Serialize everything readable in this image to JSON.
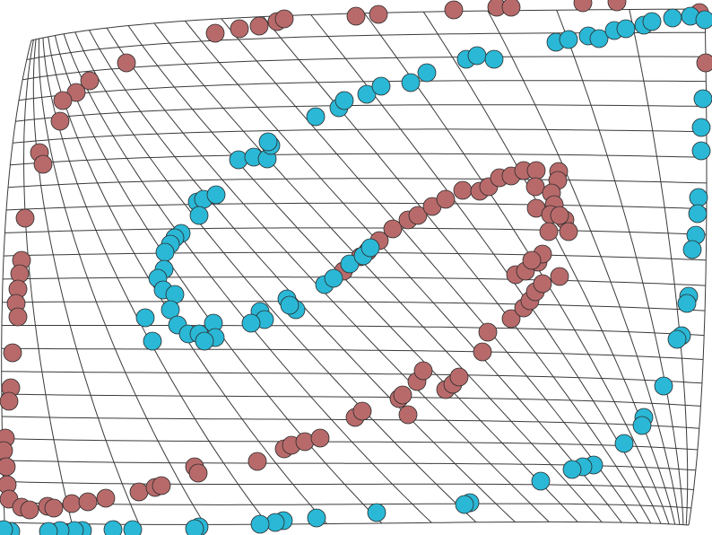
{
  "chart_data": {
    "type": "scatter",
    "title": "",
    "xlabel": "",
    "ylabel": "",
    "grid": "warped mesh",
    "legend": "none",
    "colors": {
      "red": "#b86a6a",
      "cyan": "#2ab8d6",
      "mesh": "#3a3a3a"
    },
    "series": [
      {
        "color": "red",
        "points": [
          [
            240,
            37
          ],
          [
            267,
            32
          ],
          [
            289,
            29
          ],
          [
            309,
            24
          ],
          [
            317,
            21
          ],
          [
            397,
            18
          ],
          [
            422,
            16
          ],
          [
            506,
            11
          ],
          [
            554,
            8
          ],
          [
            570,
            8
          ],
          [
            650,
            3
          ],
          [
            688,
            2
          ],
          [
            780,
            14
          ],
          [
            787,
            70
          ],
          [
            141,
            70
          ],
          [
            100,
            90
          ],
          [
            85,
            103
          ],
          [
            70,
            112
          ],
          [
            67,
            135
          ],
          [
            44,
            170
          ],
          [
            48,
            183
          ],
          [
            28,
            243
          ],
          [
            24,
            290
          ],
          [
            22,
            305
          ],
          [
            20,
            322
          ],
          [
            18,
            338
          ],
          [
            20,
            353
          ],
          [
            14,
            393
          ],
          [
            12,
            432
          ],
          [
            10,
            447
          ],
          [
            6,
            488
          ],
          [
            4,
            502
          ],
          [
            7,
            520
          ],
          [
            8,
            540
          ],
          [
            10,
            556
          ],
          [
            24,
            565
          ],
          [
            33,
            568
          ],
          [
            53,
            564
          ],
          [
            60,
            566
          ],
          [
            80,
            561
          ],
          [
            98,
            559
          ],
          [
            118,
            555
          ],
          [
            155,
            548
          ],
          [
            173,
            543
          ],
          [
            180,
            541
          ],
          [
            217,
            520
          ],
          [
            221,
            527
          ],
          [
            287,
            514
          ],
          [
            317,
            500
          ],
          [
            325,
            496
          ],
          [
            340,
            492
          ],
          [
            357,
            488
          ],
          [
            396,
            465
          ],
          [
            404,
            458
          ],
          [
            445,
            444
          ],
          [
            449,
            440
          ],
          [
            455,
            462
          ],
          [
            465,
            425
          ],
          [
            472,
            413
          ],
          [
            497,
            434
          ],
          [
            505,
            428
          ],
          [
            512,
            420
          ],
          [
            538,
            392
          ],
          [
            544,
            370
          ],
          [
            570,
            355
          ],
          [
            584,
            343
          ],
          [
            591,
            335
          ],
          [
            597,
            325
          ],
          [
            575,
            306
          ],
          [
            586,
            302
          ],
          [
            605,
            316
          ],
          [
            624,
            308
          ],
          [
            600,
            292
          ],
          [
            605,
            283
          ],
          [
            593,
            290
          ],
          [
            383,
            302
          ],
          [
            402,
            286
          ],
          [
            410,
            280
          ],
          [
            423,
            268
          ],
          [
            438,
            255
          ],
          [
            455,
            245
          ],
          [
            466,
            240
          ],
          [
            482,
            230
          ],
          [
            497,
            222
          ],
          [
            516,
            212
          ],
          [
            535,
            213
          ],
          [
            545,
            208
          ],
          [
            557,
            198
          ],
          [
            570,
            196
          ],
          [
            584,
            190
          ],
          [
            598,
            190
          ],
          [
            623,
            191
          ],
          [
            622,
            201
          ],
          [
            597,
            208
          ],
          [
            615,
            215
          ],
          [
            618,
            228
          ],
          [
            598,
            232
          ],
          [
            614,
            239
          ],
          [
            630,
            245
          ],
          [
            624,
            240
          ],
          [
            634,
            258
          ],
          [
            612,
            258
          ]
        ]
      },
      {
        "color": "cyan",
        "points": [
          [
            620,
            47
          ],
          [
            634,
            44
          ],
          [
            656,
            40
          ],
          [
            668,
            43
          ],
          [
            685,
            34
          ],
          [
            698,
            32
          ],
          [
            718,
            28
          ],
          [
            727,
            24
          ],
          [
            750,
            20
          ],
          [
            770,
            18
          ],
          [
            786,
            22
          ],
          [
            784,
            110
          ],
          [
            782,
            142
          ],
          [
            782,
            168
          ],
          [
            779,
            220
          ],
          [
            778,
            238
          ],
          [
            776,
            262
          ],
          [
            772,
            278
          ],
          [
            768,
            330
          ],
          [
            766,
            338
          ],
          [
            760,
            374
          ],
          [
            755,
            378
          ],
          [
            740,
            430
          ],
          [
            718,
            465
          ],
          [
            716,
            474
          ],
          [
            696,
            494
          ],
          [
            662,
            518
          ],
          [
            650,
            520
          ],
          [
            638,
            523
          ],
          [
            603,
            536
          ],
          [
            524,
            560
          ],
          [
            518,
            562
          ],
          [
            420,
            571
          ],
          [
            353,
            577
          ],
          [
            316,
            580
          ],
          [
            307,
            582
          ],
          [
            290,
            584
          ],
          [
            222,
            587
          ],
          [
            217,
            589
          ],
          [
            148,
            590
          ],
          [
            126,
            590
          ],
          [
            92,
            591
          ],
          [
            83,
            591
          ],
          [
            67,
            591
          ],
          [
            54,
            592
          ],
          [
            12,
            592
          ],
          [
            4,
            590
          ],
          [
            352,
            130
          ],
          [
            378,
            120
          ],
          [
            384,
            112
          ],
          [
            409,
            105
          ],
          [
            425,
            96
          ],
          [
            458,
            92
          ],
          [
            476,
            81
          ],
          [
            520,
            66
          ],
          [
            532,
            62
          ],
          [
            551,
            66
          ],
          [
            266,
            178
          ],
          [
            283,
            175
          ],
          [
            298,
            177
          ],
          [
            302,
            162
          ],
          [
            299,
            158
          ],
          [
            220,
            225
          ],
          [
            227,
            222
          ],
          [
            241,
            217
          ],
          [
            222,
            240
          ],
          [
            202,
            260
          ],
          [
            195,
            265
          ],
          [
            190,
            272
          ],
          [
            184,
            281
          ],
          [
            183,
            300
          ],
          [
            176,
            310
          ],
          [
            182,
            323
          ],
          [
            195,
            328
          ],
          [
            190,
            345
          ],
          [
            162,
            354
          ],
          [
            170,
            380
          ],
          [
            198,
            362
          ],
          [
            210,
            372
          ],
          [
            222,
            372
          ],
          [
            238,
            360
          ],
          [
            240,
            376
          ],
          [
            228,
            380
          ],
          [
            290,
            347
          ],
          [
            295,
            356
          ],
          [
            280,
            360
          ],
          [
            320,
            333
          ],
          [
            330,
            345
          ],
          [
            323,
            340
          ],
          [
            362,
            317
          ],
          [
            372,
            310
          ],
          [
            390,
            294
          ],
          [
            405,
            285
          ],
          [
            413,
            276
          ]
        ]
      }
    ]
  }
}
